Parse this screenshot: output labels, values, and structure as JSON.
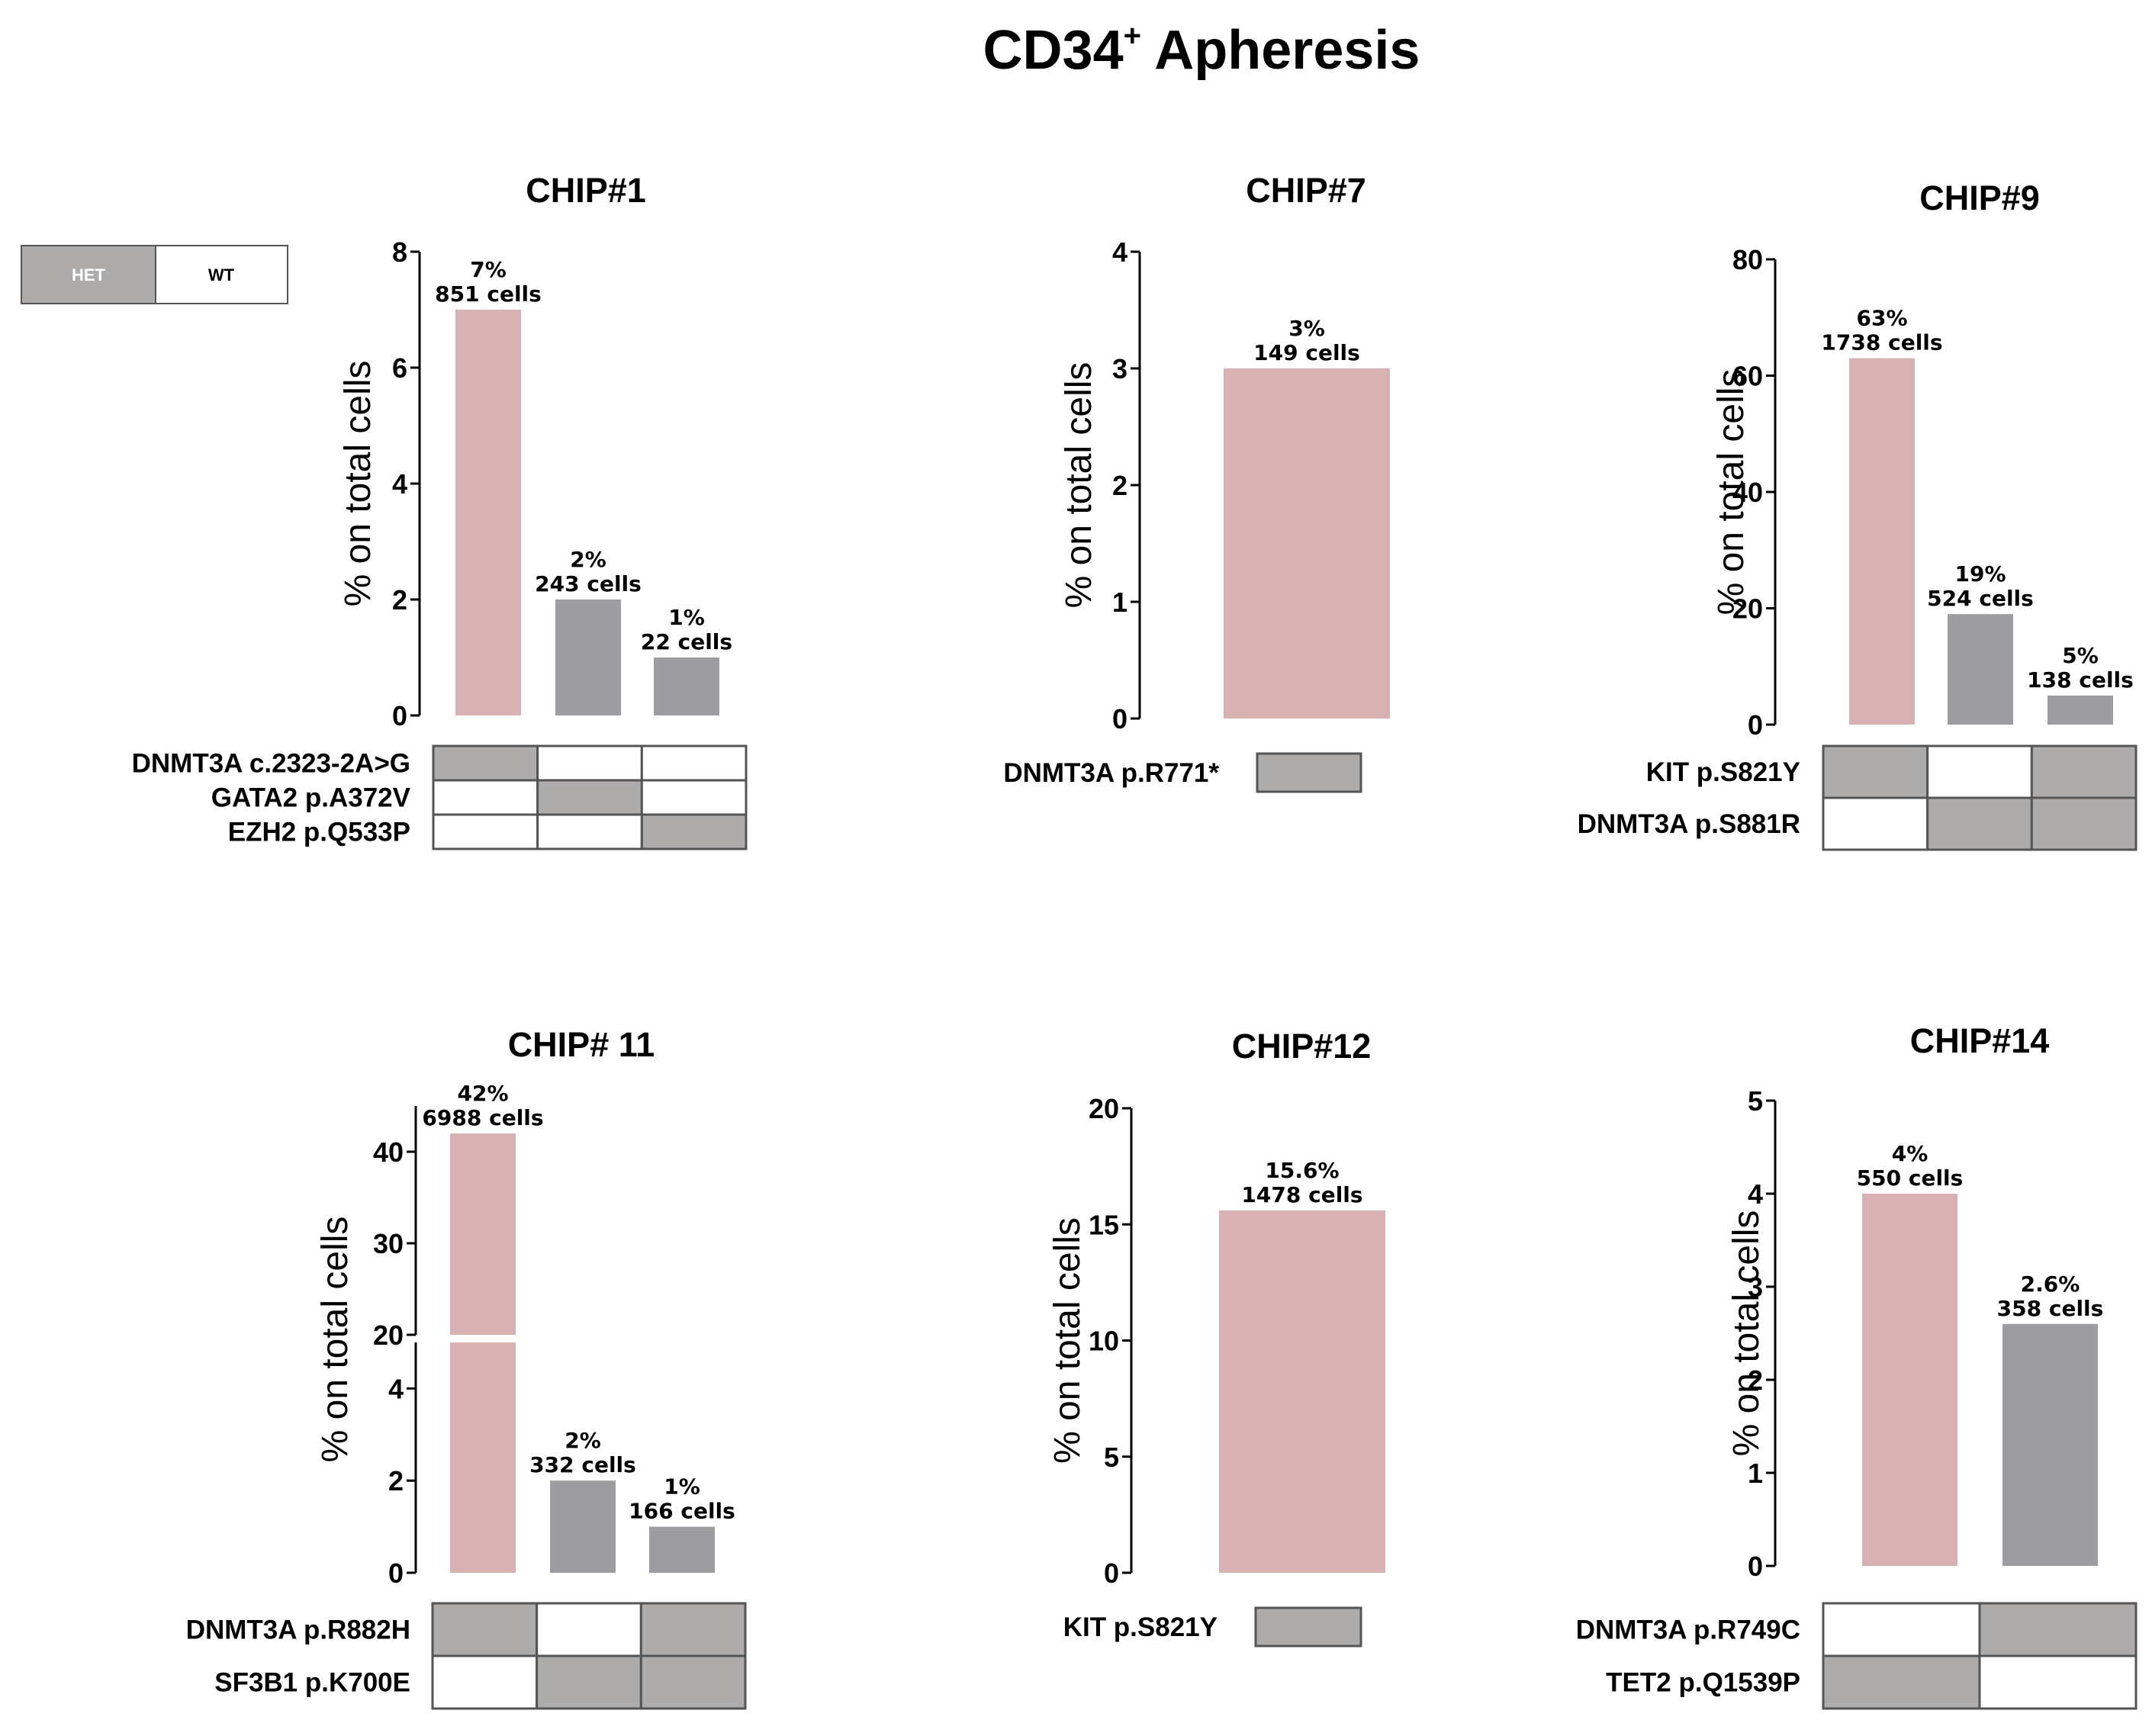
{
  "figure_title": "CD34",
  "figure_title_superscript": "+",
  "figure_title_rest": " Apheresis",
  "legend": {
    "het_label": "HET",
    "wt_label": "WT"
  },
  "colors": {
    "het_bar": "#d8b1b2",
    "gray_bar": "#9d9ca1",
    "het_cell": "#aeabab",
    "wt_cell": "#ffffff",
    "grid_line": "#555555"
  },
  "chart_data": [
    {
      "type": "bar",
      "title": "CHIP#1",
      "ylabel": "% on total cells",
      "ylim": [
        0,
        8
      ],
      "yticks": [
        0,
        2,
        4,
        6,
        8
      ],
      "values": [
        7,
        2,
        1
      ],
      "label_pct": [
        "7%",
        "2%",
        "1%"
      ],
      "label_cells": [
        "851 cells",
        "243 cells",
        "22 cells"
      ],
      "bar_colors": [
        "pink",
        "gray",
        "gray"
      ],
      "genotype_rows": [
        {
          "mutation": "DNMT3A c.2323-2A>G",
          "cells": [
            "HET",
            "WT",
            "WT"
          ]
        },
        {
          "mutation": "GATA2 p.A372V",
          "cells": [
            "WT",
            "HET",
            "WT"
          ]
        },
        {
          "mutation": "EZH2 p.Q533P",
          "cells": [
            "WT",
            "WT",
            "HET"
          ]
        }
      ]
    },
    {
      "type": "bar",
      "title": "CHIP#7",
      "ylabel": "% on total cells",
      "ylim": [
        0,
        4
      ],
      "yticks": [
        0,
        1,
        2,
        3,
        4
      ],
      "values": [
        3
      ],
      "label_pct": [
        "3%"
      ],
      "label_cells": [
        "149 cells"
      ],
      "bar_colors": [
        "pink"
      ],
      "genotype_rows": [
        {
          "mutation": "DNMT3A p.R771*",
          "cells": [
            "HET"
          ]
        }
      ]
    },
    {
      "type": "bar",
      "title": "CHIP#9",
      "ylabel": "% on total cells",
      "ylim": [
        0,
        80
      ],
      "yticks": [
        0,
        20,
        40,
        60,
        80
      ],
      "values": [
        63,
        19,
        5
      ],
      "label_pct": [
        "63%",
        "19%",
        "5%"
      ],
      "label_cells": [
        "1738 cells",
        "524 cells",
        "138 cells"
      ],
      "bar_colors": [
        "pink",
        "gray",
        "gray"
      ],
      "genotype_rows": [
        {
          "mutation": "KIT p.S821Y",
          "cells": [
            "HET",
            "WT",
            "HET"
          ]
        },
        {
          "mutation": "DNMT3A p.S881R",
          "cells": [
            "WT",
            "HET",
            "HET"
          ]
        }
      ]
    },
    {
      "type": "bar",
      "title": "CHIP# 11",
      "ylabel": "% on total cells",
      "broken_axis": {
        "lower": [
          0,
          5
        ],
        "upper": [
          20,
          45
        ]
      },
      "yticks_lower": [
        0,
        2,
        4
      ],
      "yticks_upper": [
        20,
        30,
        40
      ],
      "values": [
        42,
        2,
        1
      ],
      "label_pct": [
        "42%",
        "2%",
        "1%"
      ],
      "label_cells": [
        "6988 cells",
        "332 cells",
        "166 cells"
      ],
      "bar_colors": [
        "pink",
        "gray",
        "gray"
      ],
      "genotype_rows": [
        {
          "mutation": "DNMT3A p.R882H",
          "cells": [
            "HET",
            "WT",
            "HET"
          ]
        },
        {
          "mutation": "SF3B1 p.K700E",
          "cells": [
            "WT",
            "HET",
            "HET"
          ]
        }
      ]
    },
    {
      "type": "bar",
      "title": "CHIP#12",
      "ylabel": "% on total cells",
      "ylim": [
        0,
        20
      ],
      "yticks": [
        0,
        5,
        10,
        15,
        20
      ],
      "values": [
        15.6
      ],
      "label_pct": [
        "15.6%"
      ],
      "label_cells": [
        "1478 cells"
      ],
      "bar_colors": [
        "pink"
      ],
      "genotype_rows": [
        {
          "mutation": "KIT p.S821Y",
          "cells": [
            "HET"
          ]
        }
      ]
    },
    {
      "type": "bar",
      "title": "CHIP#14",
      "ylabel": "% on total cells",
      "ylim": [
        0,
        5
      ],
      "yticks": [
        0,
        1,
        2,
        3,
        4,
        5
      ],
      "values": [
        4,
        2.6
      ],
      "label_pct": [
        "4%",
        "2.6%"
      ],
      "label_cells": [
        "550 cells",
        "358 cells"
      ],
      "bar_colors": [
        "pink",
        "gray"
      ],
      "genotype_rows": [
        {
          "mutation": "DNMT3A p.R749C",
          "cells": [
            "WT",
            "HET"
          ]
        },
        {
          "mutation": "TET2 p.Q1539P",
          "cells": [
            "HET",
            "WT"
          ]
        }
      ]
    }
  ]
}
